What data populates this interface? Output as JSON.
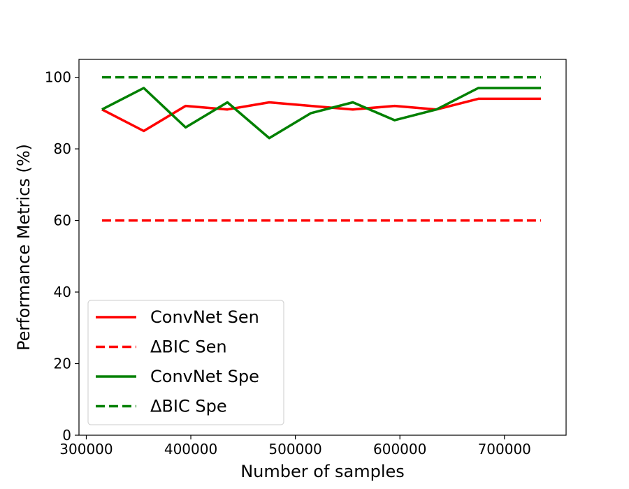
{
  "chart_data": {
    "type": "line",
    "title": "",
    "xlabel": "Number of samples",
    "ylabel": "Performance Metrics (%)",
    "xlim": [
      293000,
      759000
    ],
    "ylim": [
      0,
      105
    ],
    "xticks": [
      300000,
      400000,
      500000,
      600000,
      700000
    ],
    "yticks": [
      0,
      20,
      40,
      60,
      80,
      100
    ],
    "grid": false,
    "legend_position": "lower-left",
    "x": [
      315000,
      355000,
      395000,
      435000,
      475000,
      515000,
      555000,
      595000,
      635000,
      675000,
      735000
    ],
    "series": [
      {
        "name": "ConvNet Sen",
        "color": "#ff0000",
        "style": "solid",
        "values": [
          91,
          85,
          92,
          91,
          93,
          92,
          91,
          92,
          91,
          94,
          94
        ]
      },
      {
        "name": "ΔBIC Sen",
        "color": "#ff0000",
        "style": "dashed",
        "values": [
          60,
          60,
          60,
          60,
          60,
          60,
          60,
          60,
          60,
          60,
          60
        ]
      },
      {
        "name": "ConvNet Spe",
        "color": "#008000",
        "style": "solid",
        "values": [
          91,
          97,
          86,
          93,
          83,
          90,
          93,
          88,
          91,
          97,
          97
        ]
      },
      {
        "name": "ΔBIC Spe",
        "color": "#008000",
        "style": "dashed",
        "values": [
          100,
          100,
          100,
          100,
          100,
          100,
          100,
          100,
          100,
          100,
          100
        ]
      }
    ]
  }
}
